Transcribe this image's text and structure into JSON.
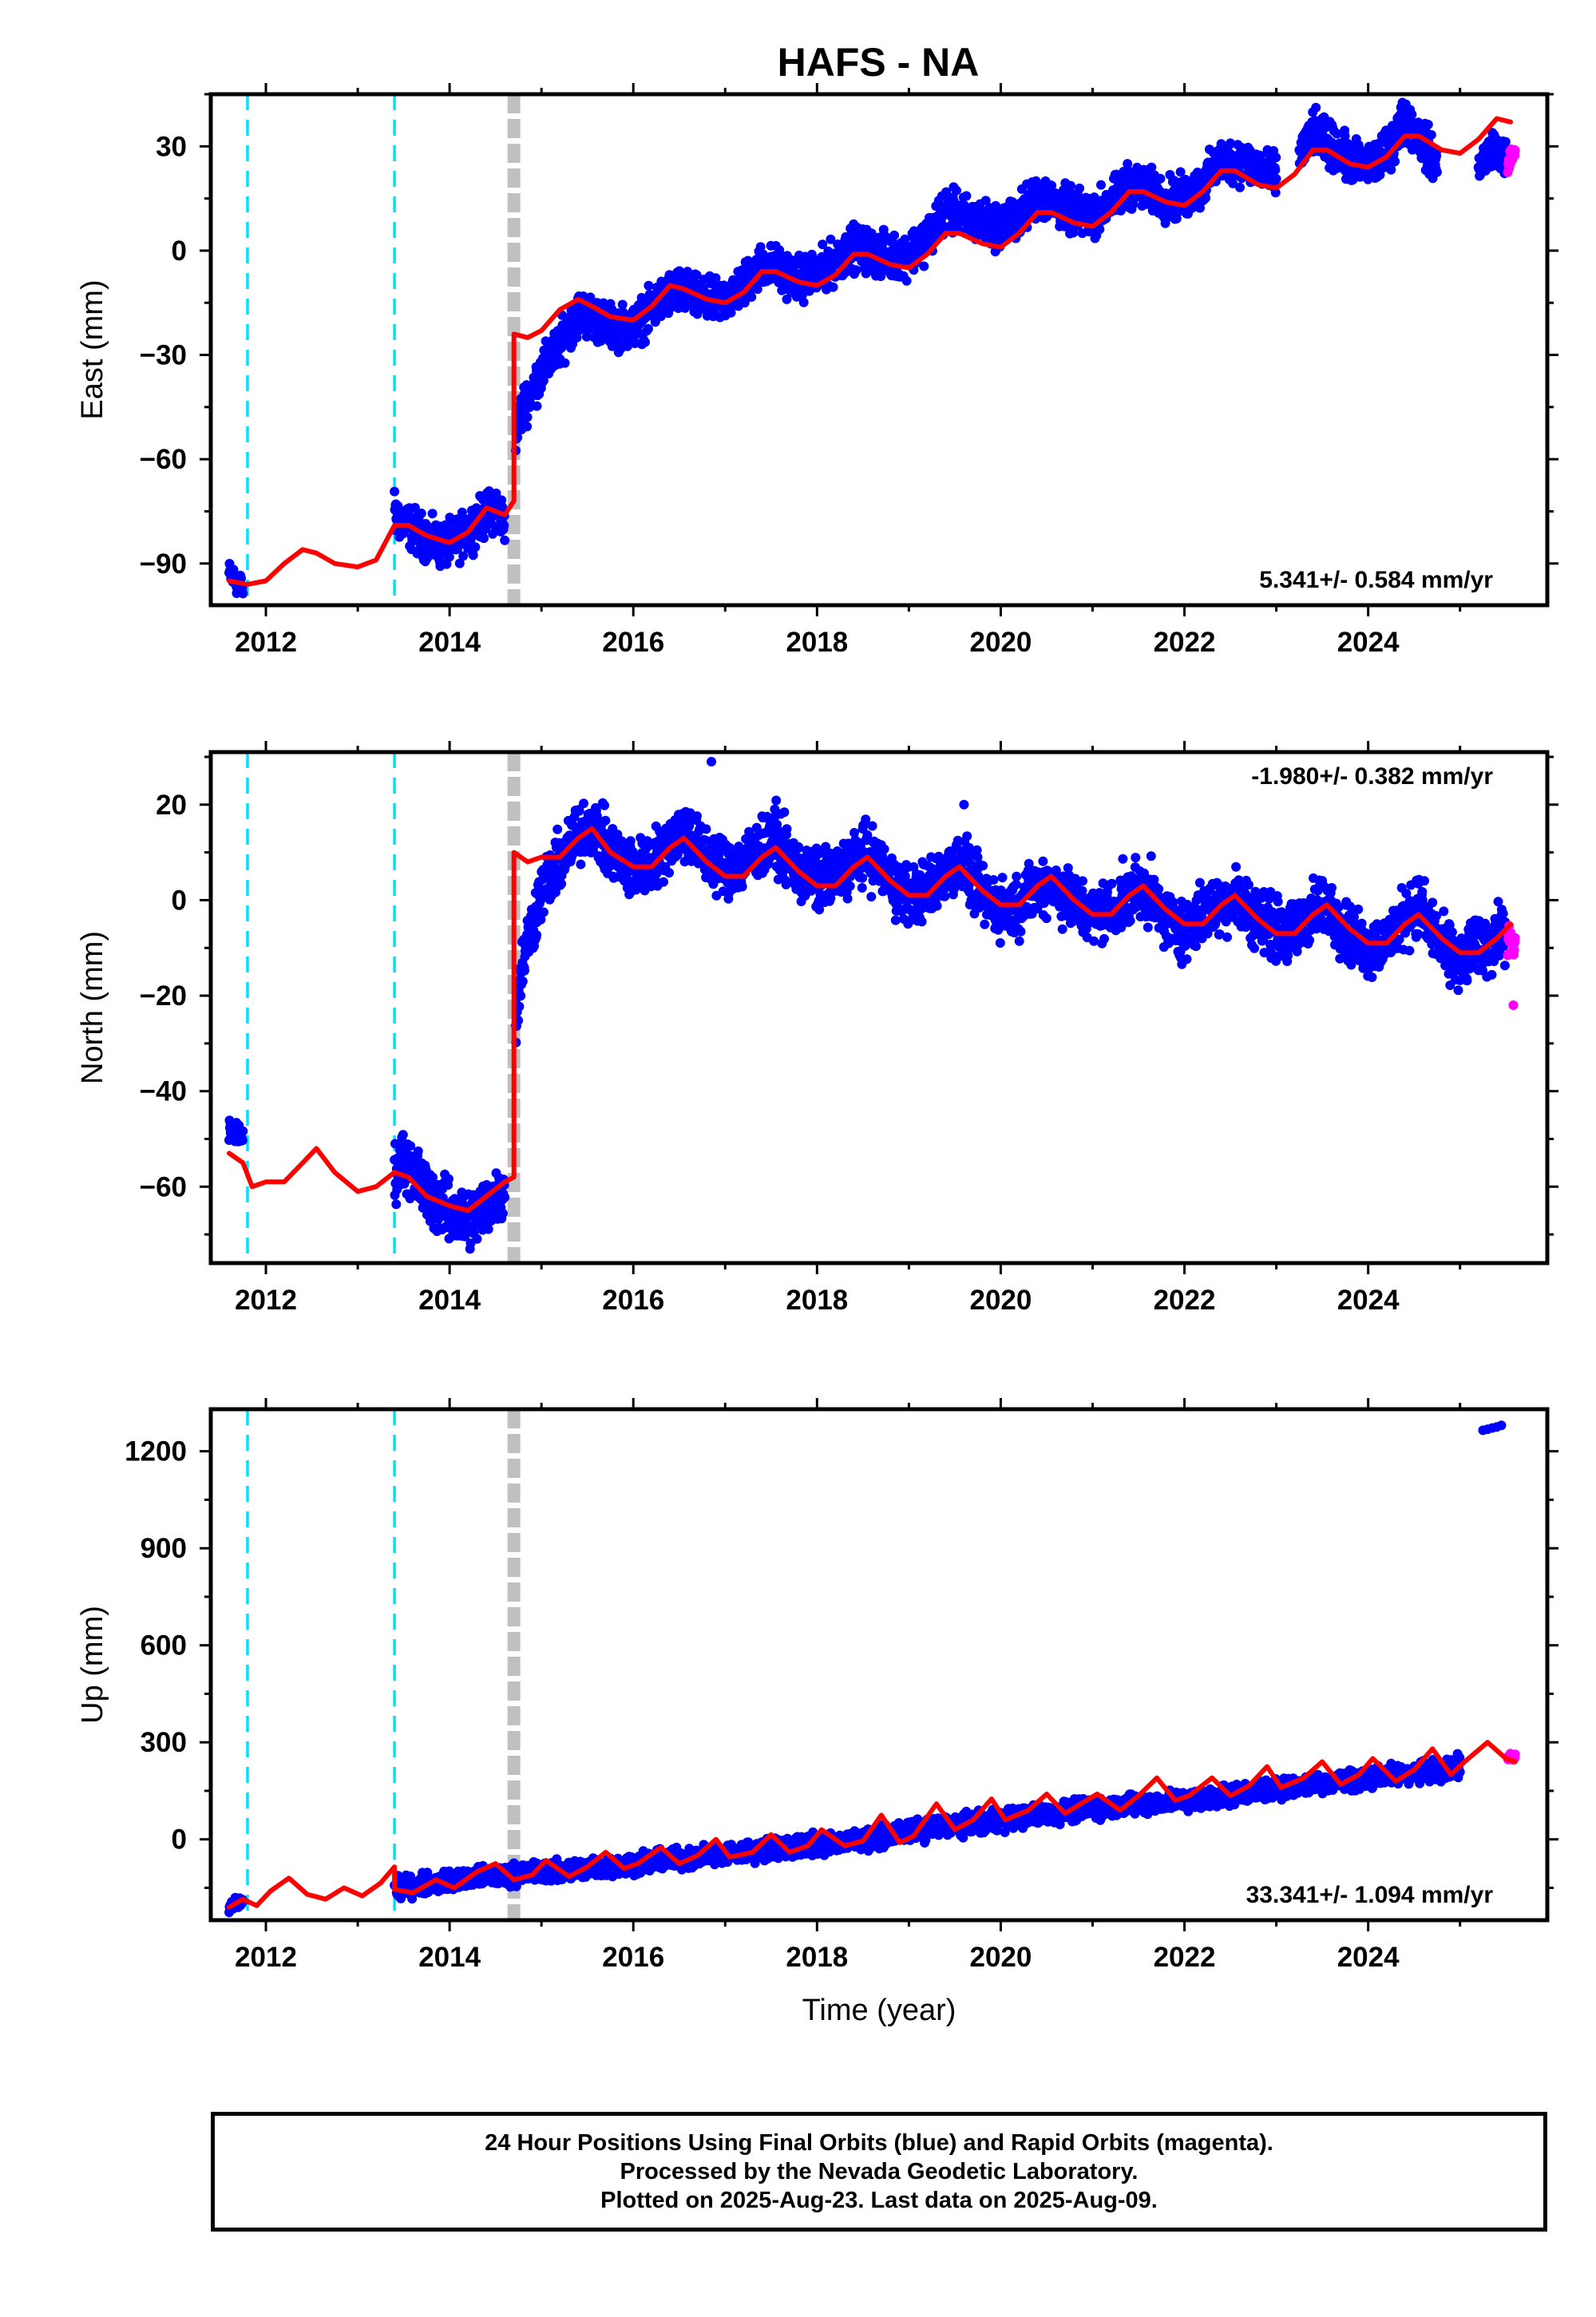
{
  "title": "HAFS - NA",
  "colors": {
    "final_orbits": "#0000ff",
    "rapid_orbits": "#ff00ff",
    "model": "#ff0000",
    "equipment_change": "#00e0ff",
    "offset_event": "#c0c0c0",
    "axis": "#000000"
  },
  "chart_data": [
    {
      "type": "scatter",
      "name": "east-panel",
      "ylabel": "East (mm)",
      "xlabel": "",
      "xlim": [
        2011.4,
        2025.95
      ],
      "ylim": [
        -102,
        45
      ],
      "xticks": [
        2012,
        2014,
        2016,
        2018,
        2020,
        2022,
        2024
      ],
      "yticks": [
        -90,
        -60,
        -30,
        0,
        30
      ],
      "rate_label": "5.341+/- 0.584 mm/yr",
      "rate_position": "bottom-right",
      "equipment_change_years": [
        2011.8,
        2013.4
      ],
      "offset_event_years": [
        2014.7
      ],
      "model_series": {
        "name": "model",
        "x": [
          2011.6,
          2011.8,
          2012.0,
          2012.2,
          2012.4,
          2012.55,
          2012.75,
          2013.0,
          2013.2,
          2013.4,
          2013.55,
          2013.75,
          2014.0,
          2014.2,
          2014.4,
          2014.6,
          2014.7,
          2014.7,
          2014.85,
          2015.0,
          2015.2,
          2015.4,
          2015.55,
          2015.75,
          2016.0,
          2016.2,
          2016.4,
          2016.55,
          2016.8,
          2017.0,
          2017.2,
          2017.4,
          2017.55,
          2017.8,
          2018.0,
          2018.2,
          2018.4,
          2018.55,
          2018.8,
          2019.0,
          2019.2,
          2019.4,
          2019.55,
          2019.8,
          2020.0,
          2020.2,
          2020.4,
          2020.55,
          2020.8,
          2021.0,
          2021.2,
          2021.4,
          2021.55,
          2021.8,
          2022.0,
          2022.2,
          2022.4,
          2022.55,
          2022.8,
          2023.0,
          2023.2,
          2023.4,
          2023.55,
          2023.8,
          2024.0,
          2024.2,
          2024.4,
          2024.55,
          2024.8,
          2025.0,
          2025.2,
          2025.4,
          2025.55
        ],
        "y": [
          -95,
          -96,
          -95,
          -90,
          -86,
          -87,
          -90,
          -91,
          -89,
          -79,
          -79,
          -82,
          -84,
          -81,
          -74,
          -76,
          -72,
          -24,
          -25,
          -23,
          -17,
          -14,
          -16,
          -19,
          -20,
          -16,
          -10,
          -11,
          -14,
          -15,
          -12,
          -6,
          -6,
          -9,
          -10,
          -7,
          -1,
          -1,
          -4,
          -5,
          -1,
          5,
          5,
          2,
          1,
          5,
          11,
          11,
          8,
          7,
          11,
          17,
          17,
          14,
          13,
          17,
          23,
          23,
          19,
          18,
          22,
          29,
          29,
          25,
          24,
          27,
          33,
          33,
          29,
          28,
          32,
          38,
          37
        ]
      },
      "blue_segments": [
        {
          "x": [
            2011.6,
            2011.75
          ],
          "y": [
            -93,
            -97
          ],
          "spread": 3
        },
        {
          "x": [
            2013.4,
            2013.5,
            2013.7,
            2013.9,
            2014.1,
            2014.3,
            2014.5,
            2014.6
          ],
          "y": [
            -76,
            -78,
            -82,
            -85,
            -83,
            -78,
            -74,
            -78
          ],
          "spread": 5
        },
        {
          "x": [
            2014.72,
            2014.8,
            2014.9,
            2015.0,
            2015.2,
            2015.4,
            2015.55,
            2015.75,
            2016.0,
            2016.2,
            2016.4,
            2016.55,
            2016.8,
            2017.0,
            2017.2,
            2017.4,
            2017.55,
            2017.8,
            2018.0,
            2018.2,
            2018.4,
            2018.55,
            2018.8,
            2019.0,
            2019.2,
            2019.4,
            2019.55,
            2019.8,
            2020.0,
            2020.2,
            2020.4,
            2020.55,
            2020.8,
            2021.0,
            2021.2,
            2021.4,
            2021.55,
            2021.8,
            2022.0,
            2022.2,
            2022.4,
            2022.55,
            2022.8,
            2023.0
          ],
          "y": [
            -52,
            -45,
            -40,
            -35,
            -27,
            -18,
            -19,
            -22,
            -22,
            -17,
            -12,
            -12,
            -15,
            -14,
            -10,
            -4,
            -5,
            -8,
            -7,
            -3,
            1,
            0,
            -2,
            -1,
            4,
            12,
            10,
            8,
            7,
            10,
            16,
            14,
            11,
            10,
            14,
            19,
            18,
            15,
            15,
            19,
            26,
            26,
            24,
            21
          ],
          "spread": 5
        },
        {
          "x": [
            2023.25,
            2023.4,
            2023.55,
            2023.8,
            2024.0,
            2024.2,
            2024.4,
            2024.55,
            2024.75
          ],
          "y": [
            27,
            34,
            31,
            26,
            24,
            28,
            38,
            33,
            25
          ],
          "spread": 5
        },
        {
          "x": [
            2025.2,
            2025.35,
            2025.5
          ],
          "y": [
            24,
            30,
            27
          ],
          "spread": 4
        }
      ],
      "magenta_segments": [
        {
          "x": [
            2025.52,
            2025.6
          ],
          "y": [
            24,
            29
          ],
          "spread": 3
        }
      ]
    },
    {
      "type": "scatter",
      "name": "north-panel",
      "ylabel": "North (mm)",
      "xlabel": "",
      "xlim": [
        2011.4,
        2025.95
      ],
      "ylim": [
        -76,
        31
      ],
      "xticks": [
        2012,
        2014,
        2016,
        2018,
        2020,
        2022,
        2024
      ],
      "yticks": [
        -60,
        -40,
        -20,
        0,
        20
      ],
      "rate_label": "-1.980+/- 0.382 mm/yr",
      "rate_position": "top-right",
      "equipment_change_years": [
        2011.8,
        2013.4
      ],
      "offset_event_years": [
        2014.7
      ],
      "model_series": {
        "name": "model",
        "x": [
          2011.6,
          2011.75,
          2011.85,
          2012.0,
          2012.2,
          2012.4,
          2012.55,
          2012.75,
          2013.0,
          2013.2,
          2013.4,
          2013.55,
          2013.75,
          2014.0,
          2014.2,
          2014.4,
          2014.6,
          2014.7,
          2014.7,
          2014.85,
          2015.0,
          2015.2,
          2015.4,
          2015.55,
          2015.75,
          2016.0,
          2016.2,
          2016.4,
          2016.55,
          2016.8,
          2017.0,
          2017.2,
          2017.4,
          2017.55,
          2017.8,
          2018.0,
          2018.2,
          2018.4,
          2018.55,
          2018.8,
          2019.0,
          2019.2,
          2019.4,
          2019.55,
          2019.8,
          2020.0,
          2020.2,
          2020.4,
          2020.55,
          2020.8,
          2021.0,
          2021.2,
          2021.4,
          2021.55,
          2021.8,
          2022.0,
          2022.2,
          2022.4,
          2022.55,
          2022.8,
          2023.0,
          2023.2,
          2023.4,
          2023.55,
          2023.8,
          2024.0,
          2024.2,
          2024.4,
          2024.55,
          2024.8,
          2025.0,
          2025.2,
          2025.4,
          2025.55
        ],
        "y": [
          -53,
          -55,
          -60,
          -59,
          -59,
          -55,
          -52,
          -57,
          -61,
          -60,
          -57,
          -58,
          -62,
          -64,
          -65,
          -62,
          -59,
          -58,
          10,
          8,
          9,
          9,
          13,
          15,
          10,
          7,
          7,
          11,
          13,
          8,
          5,
          5,
          9,
          11,
          6,
          3,
          3,
          7,
          9,
          4,
          1,
          1,
          5,
          7,
          2,
          -1,
          -1,
          3,
          5,
          0,
          -3,
          -3,
          1,
          3,
          -2,
          -5,
          -5,
          -1,
          1,
          -4,
          -7,
          -7,
          -3,
          -1,
          -6,
          -9,
          -9,
          -5,
          -3,
          -8,
          -11,
          -11,
          -8,
          -5
        ]
      },
      "blue_segments": [
        {
          "x": [
            2011.6,
            2011.75
          ],
          "y": [
            -48,
            -50
          ],
          "spread": 2
        },
        {
          "x": [
            2013.4,
            2013.5,
            2013.7,
            2013.9,
            2014.1,
            2014.3,
            2014.5,
            2014.6
          ],
          "y": [
            -57,
            -54,
            -60,
            -64,
            -67,
            -66,
            -62,
            -60
          ],
          "spread": 5
        },
        {
          "x": [
            2014.72,
            2014.8,
            2014.9,
            2015.0,
            2015.2,
            2015.4,
            2015.55,
            2015.75,
            2016.0,
            2016.2,
            2016.4,
            2016.55,
            2016.8,
            2017.0,
            2017.2,
            2017.4,
            2017.55,
            2017.8,
            2018.0,
            2018.2,
            2018.4,
            2018.55,
            2018.8,
            2019.0,
            2019.2,
            2019.4,
            2019.55,
            2019.8,
            2020.0,
            2020.2,
            2020.4,
            2020.55,
            2020.8,
            2021.0,
            2021.2,
            2021.4,
            2021.55,
            2021.8,
            2022.0,
            2022.2,
            2022.4,
            2022.55,
            2022.8,
            2023.0,
            2023.2,
            2023.4,
            2023.55,
            2023.8,
            2024.0,
            2024.2,
            2024.4,
            2024.55,
            2024.8,
            2025.0,
            2025.2,
            2025.35,
            2025.5
          ],
          "y": [
            -25,
            -12,
            -5,
            2,
            8,
            14,
            16,
            10,
            6,
            8,
            12,
            15,
            9,
            7,
            8,
            11,
            13,
            6,
            4,
            5,
            8,
            10,
            4,
            1,
            2,
            6,
            8,
            1,
            -2,
            -1,
            3,
            4,
            -1,
            -3,
            -2,
            1,
            3,
            -4,
            -6,
            -3,
            -1,
            1,
            -4,
            -6,
            -7,
            -2,
            -1,
            -7,
            -10,
            -9,
            -3,
            -1,
            -10,
            -13,
            -9,
            -9,
            -6
          ],
          "spread": 5
        }
      ],
      "magenta_segments": [
        {
          "x": [
            2025.52,
            2025.6
          ],
          "y": [
            -8,
            -11
          ],
          "spread": 3
        }
      ],
      "outliers_blue": [
        [
          2016.85,
          29
        ],
        [
          2019.6,
          20
        ]
      ],
      "outliers_magenta": [
        [
          2025.58,
          -22
        ]
      ]
    },
    {
      "type": "scatter",
      "name": "up-panel",
      "ylabel": "Up (mm)",
      "xlabel": "Time (year)",
      "xlim": [
        2011.4,
        2025.95
      ],
      "ylim": [
        -250,
        1330
      ],
      "xticks": [
        2012,
        2014,
        2016,
        2018,
        2020,
        2022,
        2024
      ],
      "yticks": [
        0,
        300,
        600,
        900,
        1200
      ],
      "rate_label": "33.341+/- 1.094 mm/yr",
      "rate_position": "bottom-right",
      "equipment_change_years": [
        2011.8,
        2013.4
      ],
      "offset_event_years": [
        2014.7
      ],
      "model_series": {
        "name": "model",
        "x": [
          2011.6,
          2011.75,
          2011.9,
          2012.05,
          2012.25,
          2012.45,
          2012.65,
          2012.85,
          2013.05,
          2013.25,
          2013.4,
          2013.4,
          2013.6,
          2013.85,
          2014.05,
          2014.3,
          2014.5,
          2014.7,
          2014.9,
          2015.05,
          2015.3,
          2015.5,
          2015.7,
          2015.9,
          2016.05,
          2016.3,
          2016.5,
          2016.7,
          2016.9,
          2017.05,
          2017.3,
          2017.5,
          2017.7,
          2017.9,
          2018.05,
          2018.3,
          2018.5,
          2018.7,
          2018.9,
          2019.05,
          2019.3,
          2019.5,
          2019.7,
          2019.9,
          2020.05,
          2020.3,
          2020.5,
          2020.7,
          2020.9,
          2021.05,
          2021.3,
          2021.5,
          2021.7,
          2021.9,
          2022.05,
          2022.3,
          2022.5,
          2022.7,
          2022.9,
          2023.05,
          2023.3,
          2023.5,
          2023.7,
          2023.9,
          2024.05,
          2024.3,
          2024.5,
          2024.7,
          2024.9,
          2025.05,
          2025.3,
          2025.5,
          2025.6
        ],
        "y": [
          -210,
          -185,
          -205,
          -160,
          -120,
          -170,
          -185,
          -150,
          -175,
          -135,
          -85,
          -155,
          -165,
          -125,
          -150,
          -100,
          -75,
          -125,
          -110,
          -65,
          -115,
          -85,
          -40,
          -90,
          -75,
          -25,
          -75,
          -50,
          0,
          -55,
          -40,
          15,
          -40,
          -20,
          30,
          -20,
          -5,
          75,
          -10,
          10,
          110,
          30,
          60,
          125,
          60,
          90,
          140,
          80,
          115,
          140,
          90,
          135,
          190,
          120,
          135,
          190,
          135,
          165,
          225,
          160,
          190,
          240,
          170,
          200,
          250,
          180,
          215,
          280,
          200,
          240,
          300,
          250,
          240
        ]
      },
      "blue_segments": [
        {
          "x": [
            2011.6,
            2011.75
          ],
          "y": [
            -210,
            -190
          ],
          "spread": 15
        },
        {
          "x": [
            2013.4,
            2013.7,
            2014.0,
            2014.3,
            2014.6,
            2015.0,
            2015.5,
            2016.0,
            2016.5,
            2017.0,
            2017.5,
            2018.0,
            2018.5,
            2019.0,
            2019.5,
            2020.0,
            2020.5,
            2021.0,
            2021.5,
            2022.0,
            2022.5,
            2023.0,
            2023.5,
            2024.0,
            2024.5,
            2025.0
          ],
          "y": [
            -150,
            -140,
            -130,
            -120,
            -110,
            -100,
            -90,
            -75,
            -60,
            -45,
            -30,
            -15,
            0,
            25,
            45,
            60,
            80,
            95,
            110,
            120,
            140,
            155,
            175,
            190,
            205,
            225
          ],
          "spread": 25
        }
      ],
      "magenta_segments": [
        {
          "x": [
            2025.52,
            2025.6
          ],
          "y": [
            250,
            260
          ],
          "spread": 10
        }
      ],
      "outliers_blue": [
        [
          2025.3,
          1268
        ],
        [
          2025.35,
          1272
        ],
        [
          2025.4,
          1275
        ],
        [
          2025.45,
          1280
        ],
        [
          2025.25,
          1265
        ]
      ],
      "outliers_magenta": []
    }
  ],
  "footer": {
    "line1": "24 Hour Positions Using Final Orbits (blue) and Rapid Orbits (magenta).",
    "line2": "Processed by the Nevada Geodetic Laboratory.",
    "line3": "Plotted on 2025-Aug-23. Last data on 2025-Aug-09."
  }
}
